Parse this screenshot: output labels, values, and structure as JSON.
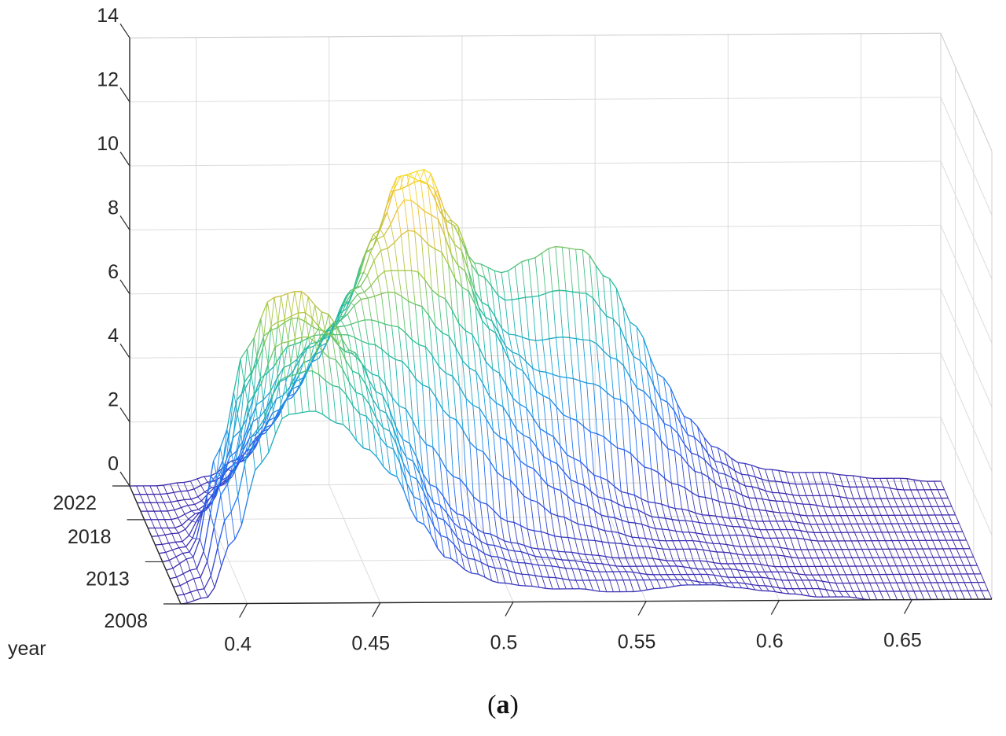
{
  "caption": {
    "open": "(",
    "letter": "a",
    "close": ")"
  },
  "chart_data": {
    "type": "surface",
    "title": "",
    "xlabel": "",
    "ylabel": "year",
    "zlabel": "",
    "x_ticks": [
      0.4,
      0.45,
      0.5,
      0.55,
      0.6,
      0.65
    ],
    "x_tick_labels": [
      "0.4",
      "0.45",
      "0.5",
      "0.55",
      "0.6",
      "0.65"
    ],
    "y_ticks": [
      2008,
      2013,
      2018,
      2022
    ],
    "y_tick_labels": [
      "2008",
      "2013",
      "2018",
      "2022"
    ],
    "z_ticks": [
      0,
      2,
      4,
      6,
      8,
      10,
      12,
      14
    ],
    "z_tick_labels": [
      "0",
      "2",
      "4",
      "6",
      "8",
      "10",
      "12",
      "14"
    ],
    "xlim": [
      0.375,
      0.68
    ],
    "ylim": [
      2008,
      2022
    ],
    "zlim": [
      0,
      14
    ],
    "grid": true,
    "colormap": "parula",
    "x_samples": [
      0.375,
      0.385,
      0.395,
      0.405,
      0.415,
      0.425,
      0.435,
      0.445,
      0.455,
      0.465,
      0.475,
      0.485,
      0.495,
      0.505,
      0.515,
      0.525,
      0.535,
      0.545,
      0.555,
      0.565,
      0.575,
      0.585,
      0.595,
      0.605,
      0.615,
      0.625,
      0.635,
      0.645,
      0.655,
      0.665,
      0.675
    ],
    "series": [
      {
        "year": 2008,
        "density": [
          0.0,
          0.2,
          2.0,
          4.4,
          5.9,
          6.0,
          5.6,
          4.8,
          4.0,
          2.5,
          1.4,
          0.9,
          0.6,
          0.5,
          0.4,
          0.4,
          0.3,
          0.3,
          0.4,
          0.5,
          0.5,
          0.4,
          0.3,
          0.2,
          0.1,
          0.1,
          0.0,
          0.0,
          0.0,
          0.0,
          0.0
        ]
      },
      {
        "year": 2009,
        "density": [
          0.0,
          0.2,
          2.6,
          5.2,
          6.8,
          7.0,
          6.5,
          5.6,
          4.6,
          3.0,
          1.8,
          1.1,
          0.8,
          0.6,
          0.5,
          0.4,
          0.4,
          0.4,
          0.4,
          0.4,
          0.3,
          0.3,
          0.2,
          0.1,
          0.1,
          0.0,
          0.0,
          0.0,
          0.0,
          0.0,
          0.0
        ]
      },
      {
        "year": 2010,
        "density": [
          0.0,
          0.3,
          3.2,
          6.0,
          7.6,
          7.8,
          7.1,
          6.0,
          4.9,
          3.4,
          2.1,
          1.3,
          0.9,
          0.7,
          0.6,
          0.5,
          0.4,
          0.4,
          0.3,
          0.3,
          0.3,
          0.2,
          0.2,
          0.1,
          0.1,
          0.0,
          0.0,
          0.0,
          0.0,
          0.0,
          0.0
        ]
      },
      {
        "year": 2011,
        "density": [
          0.0,
          0.3,
          3.5,
          6.4,
          8.0,
          8.3,
          7.6,
          6.4,
          5.2,
          3.7,
          2.3,
          1.5,
          1.0,
          0.8,
          0.6,
          0.5,
          0.4,
          0.3,
          0.3,
          0.3,
          0.2,
          0.2,
          0.1,
          0.1,
          0.0,
          0.0,
          0.0,
          0.0,
          0.0,
          0.0,
          0.0
        ]
      },
      {
        "year": 2012,
        "density": [
          0.0,
          0.4,
          3.8,
          6.9,
          8.5,
          8.7,
          8.0,
          6.8,
          5.5,
          4.0,
          2.6,
          1.7,
          1.1,
          0.8,
          0.6,
          0.5,
          0.4,
          0.3,
          0.3,
          0.2,
          0.2,
          0.1,
          0.1,
          0.0,
          0.0,
          0.0,
          0.0,
          0.0,
          0.0,
          0.0,
          0.0
        ]
      },
      {
        "year": 2013,
        "density": [
          0.0,
          0.3,
          2.7,
          5.3,
          7.2,
          7.6,
          7.2,
          6.5,
          5.8,
          4.8,
          3.6,
          2.6,
          1.8,
          1.2,
          0.9,
          0.7,
          0.6,
          0.5,
          0.4,
          0.3,
          0.3,
          0.2,
          0.1,
          0.1,
          0.0,
          0.0,
          0.0,
          0.0,
          0.0,
          0.0,
          0.0
        ]
      },
      {
        "year": 2014,
        "density": [
          0.0,
          0.2,
          1.8,
          3.8,
          5.6,
          6.5,
          6.8,
          6.8,
          6.5,
          6.0,
          5.2,
          4.2,
          3.2,
          2.3,
          1.6,
          1.1,
          0.8,
          0.6,
          0.4,
          0.3,
          0.3,
          0.2,
          0.1,
          0.1,
          0.0,
          0.0,
          0.0,
          0.0,
          0.0,
          0.0,
          0.0
        ]
      },
      {
        "year": 2015,
        "density": [
          0.0,
          0.1,
          1.2,
          2.9,
          4.5,
          5.6,
          6.3,
          6.8,
          7.0,
          6.8,
          6.2,
          5.3,
          4.3,
          3.3,
          2.4,
          1.7,
          1.2,
          0.8,
          0.6,
          0.4,
          0.3,
          0.2,
          0.2,
          0.1,
          0.1,
          0.0,
          0.0,
          0.0,
          0.0,
          0.0,
          0.0
        ]
      },
      {
        "year": 2016,
        "density": [
          0.0,
          0.1,
          0.8,
          2.2,
          3.7,
          4.9,
          5.9,
          6.7,
          7.4,
          7.6,
          7.2,
          6.3,
          5.2,
          4.1,
          3.1,
          2.3,
          1.6,
          1.1,
          0.8,
          0.5,
          0.4,
          0.3,
          0.2,
          0.1,
          0.1,
          0.0,
          0.0,
          0.0,
          0.0,
          0.0,
          0.0
        ]
      },
      {
        "year": 2017,
        "density": [
          0.0,
          0.0,
          0.5,
          1.6,
          2.9,
          4.1,
          5.2,
          6.3,
          7.3,
          8.0,
          8.0,
          7.2,
          6.1,
          4.9,
          3.8,
          2.9,
          2.1,
          1.5,
          1.0,
          0.7,
          0.5,
          0.3,
          0.2,
          0.1,
          0.1,
          0.0,
          0.0,
          0.0,
          0.0,
          0.0,
          0.0
        ]
      },
      {
        "year": 2018,
        "density": [
          0.0,
          0.0,
          0.3,
          1.1,
          2.2,
          3.4,
          4.6,
          5.9,
          7.2,
          8.4,
          9.0,
          8.4,
          7.2,
          5.9,
          4.7,
          3.8,
          3.1,
          2.6,
          2.1,
          1.5,
          1.0,
          0.6,
          0.4,
          0.2,
          0.1,
          0.0,
          0.0,
          0.0,
          0.0,
          0.0,
          0.0
        ]
      },
      {
        "year": 2019,
        "density": [
          0.0,
          0.0,
          0.2,
          0.8,
          1.7,
          2.9,
          4.1,
          5.4,
          6.9,
          8.5,
          9.7,
          9.2,
          7.6,
          6.0,
          4.9,
          4.3,
          4.1,
          3.9,
          3.4,
          2.6,
          1.8,
          1.1,
          0.6,
          0.3,
          0.2,
          0.1,
          0.0,
          0.0,
          0.0,
          0.0,
          0.0
        ]
      },
      {
        "year": 2020,
        "density": [
          0.0,
          0.0,
          0.1,
          0.5,
          1.3,
          2.4,
          3.6,
          4.9,
          6.5,
          8.4,
          10.2,
          9.9,
          8.0,
          6.2,
          5.2,
          5.0,
          5.1,
          5.0,
          4.4,
          3.4,
          2.3,
          1.4,
          0.8,
          0.4,
          0.2,
          0.1,
          0.1,
          0.0,
          0.0,
          0.0,
          0.0
        ]
      },
      {
        "year": 2021,
        "density": [
          0.0,
          0.0,
          0.1,
          0.4,
          1.0,
          2.0,
          3.1,
          4.4,
          5.9,
          7.9,
          9.9,
          10.1,
          8.5,
          6.8,
          6.0,
          6.1,
          6.3,
          6.2,
          5.4,
          4.1,
          2.8,
          1.7,
          0.9,
          0.5,
          0.3,
          0.2,
          0.2,
          0.1,
          0.1,
          0.0,
          0.0
        ]
      },
      {
        "year": 2022,
        "density": [
          0.0,
          0.0,
          0.1,
          0.3,
          0.8,
          1.6,
          2.7,
          3.9,
          5.4,
          7.3,
          9.2,
          9.5,
          8.2,
          6.9,
          6.6,
          7.0,
          7.4,
          7.3,
          6.4,
          4.9,
          3.3,
          2.0,
          1.1,
          0.6,
          0.4,
          0.3,
          0.3,
          0.2,
          0.1,
          0.1,
          0.0
        ]
      }
    ]
  }
}
